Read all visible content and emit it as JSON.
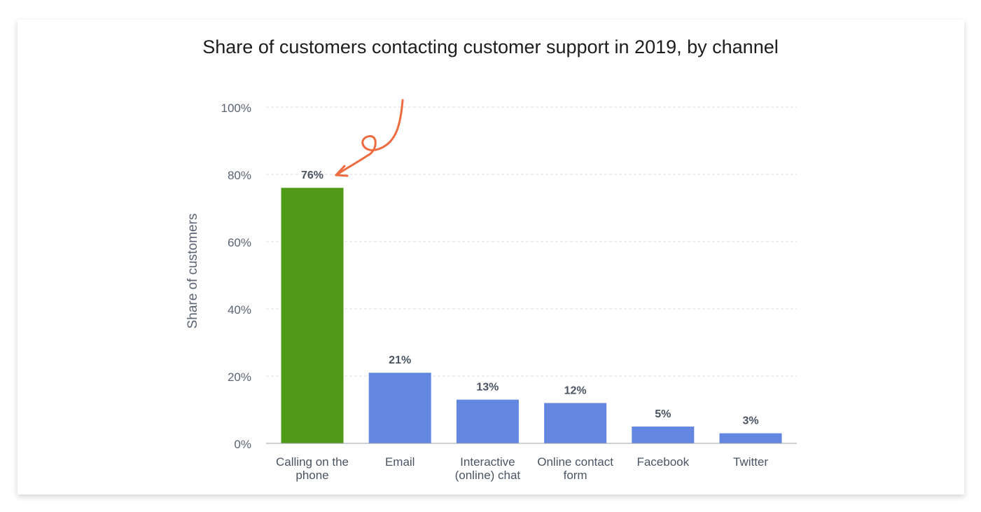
{
  "chart_data": {
    "type": "bar",
    "title": "Share of customers contacting customer support in 2019, by channel",
    "ylabel": "Share of customers",
    "xlabel": "",
    "categories": [
      [
        "Calling on the",
        "phone"
      ],
      [
        "Email"
      ],
      [
        "Interactive",
        "(online) chat"
      ],
      [
        "Online contact",
        "form"
      ],
      [
        "Facebook"
      ],
      [
        "Twitter"
      ]
    ],
    "values": [
      76,
      21,
      13,
      12,
      5,
      3
    ],
    "data_labels": [
      "76%",
      "21%",
      "13%",
      "12%",
      "5%",
      "3%"
    ],
    "ylim": [
      0,
      100
    ],
    "yticks": [
      0,
      20,
      40,
      60,
      80,
      100
    ],
    "ytick_labels": [
      "0%",
      "20%",
      "40%",
      "60%",
      "80%",
      "100%"
    ],
    "grid": true,
    "colors": [
      "#4f9a16",
      "#6387e0",
      "#6387e0",
      "#6387e0",
      "#6387e0",
      "#6387e0"
    ],
    "annotation_color": "#ee6b3f",
    "annotation": "hand-drawn arrow pointing to the 76% bar"
  }
}
